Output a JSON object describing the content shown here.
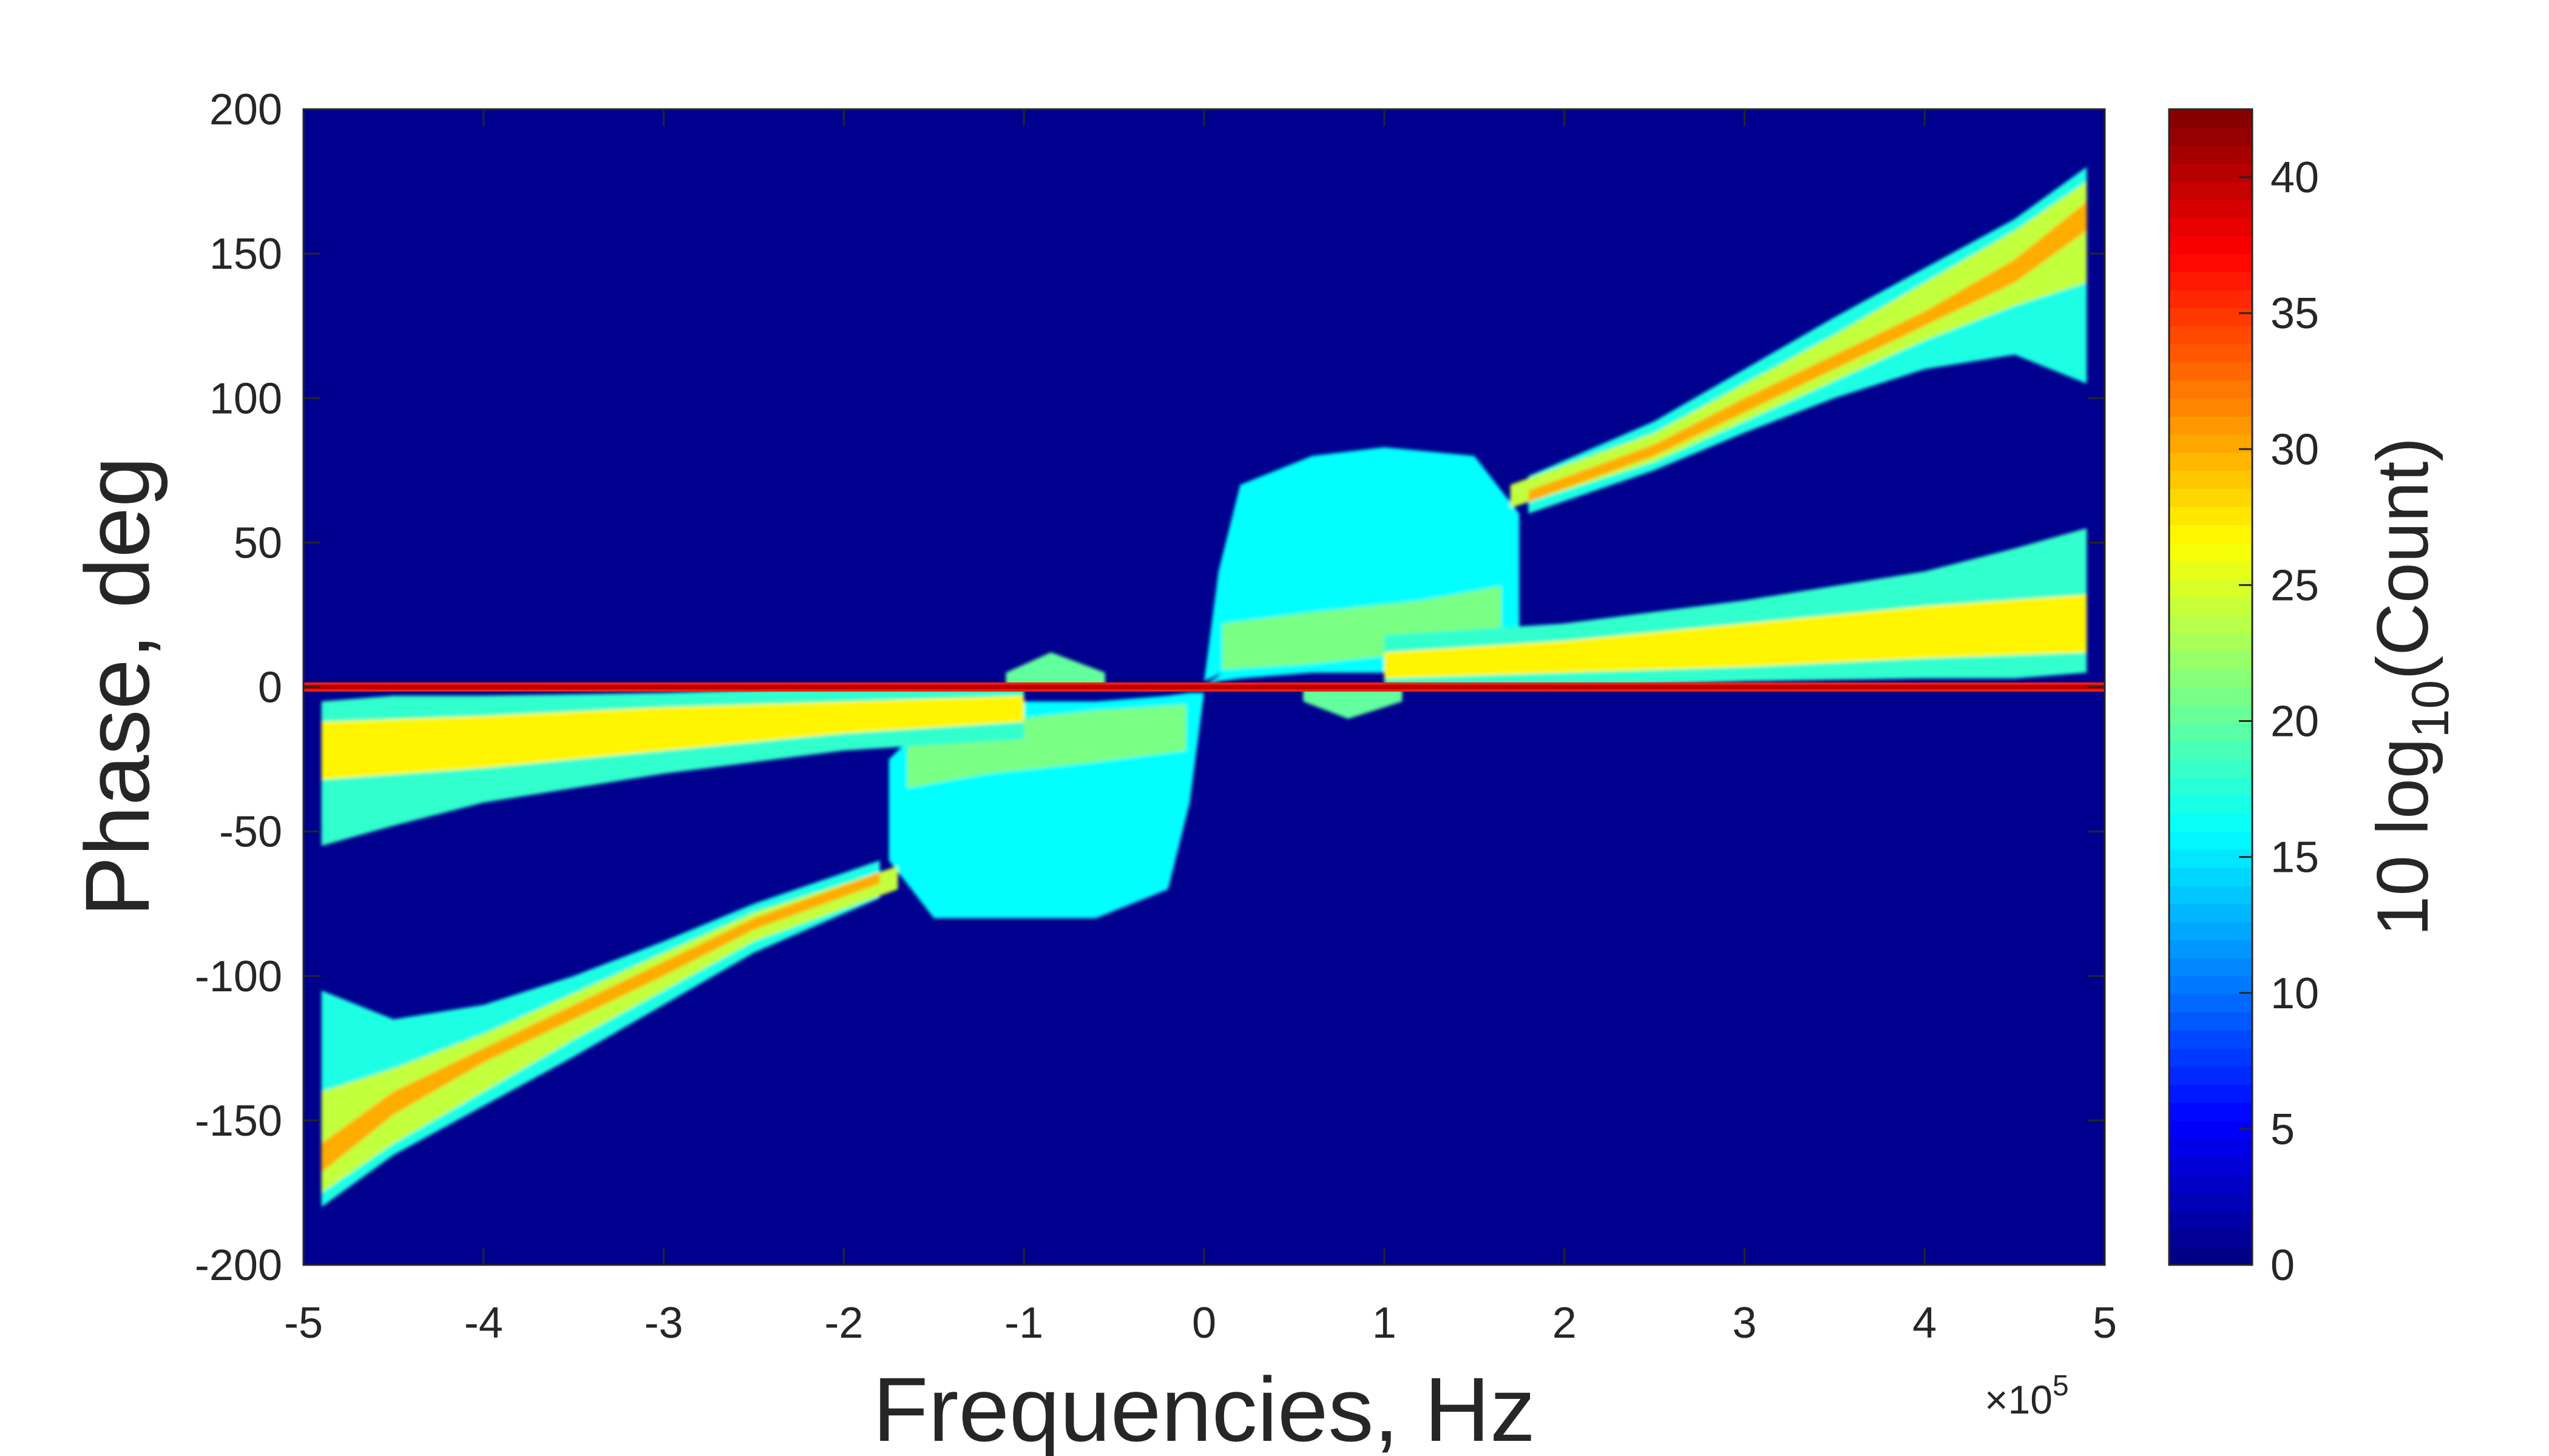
{
  "chart_data": {
    "type": "heatmap",
    "title": "",
    "xlabel": "Frequencies, Hz",
    "ylabel": "Phase, deg",
    "x_exponent_label": "×10",
    "x_exponent_power": "5",
    "xlim": [
      -500000,
      500000
    ],
    "ylim": [
      -200,
      200
    ],
    "x_ticks": [
      -500000,
      -400000,
      -300000,
      -200000,
      -100000,
      0,
      100000,
      200000,
      300000,
      400000,
      500000
    ],
    "x_tick_labels": [
      "-5",
      "-4",
      "-3",
      "-2",
      "-1",
      "0",
      "1",
      "2",
      "3",
      "4",
      "5"
    ],
    "y_ticks": [
      200,
      150,
      100,
      50,
      0,
      -50,
      -100,
      -150,
      -200
    ],
    "y_tick_labels": [
      "200",
      "150",
      "100",
      "50",
      "0",
      "-50",
      "-100",
      "-150",
      "-200"
    ],
    "colorbar": {
      "label_prefix": "10 log",
      "label_sub": "10",
      "label_suffix": "(Count)",
      "clim": [
        0,
        42.5
      ],
      "ticks": [
        0,
        5,
        10,
        15,
        20,
        25,
        30,
        35,
        40
      ],
      "tick_labels": [
        "0",
        "5",
        "10",
        "15",
        "20",
        "25",
        "30",
        "35",
        "40"
      ],
      "colormap": "jet"
    },
    "background_color": "#00008f",
    "structures": [
      {
        "name": "zero-phase line",
        "x": [
          -500000,
          500000
        ],
        "y": [
          0,
          0
        ],
        "value": 38
      },
      {
        "name": "upper ramp",
        "x": [
          -500000,
          -100000,
          0,
          100000,
          200000,
          300000,
          400000,
          490000
        ],
        "y_center": [
          -20,
          -5,
          0,
          3,
          8,
          15,
          20,
          25
        ],
        "value": 28
      },
      {
        "name": "lower ramp",
        "x": [
          -500000,
          0,
          100000,
          200000,
          300000,
          400000,
          490000
        ],
        "y_center": [
          -170,
          0,
          20,
          65,
          100,
          135,
          165
        ],
        "value": 26
      },
      {
        "name": "central blob",
        "x_range": [
          -150000,
          150000
        ],
        "y_range": [
          -80,
          80
        ],
        "value": 17
      }
    ]
  }
}
